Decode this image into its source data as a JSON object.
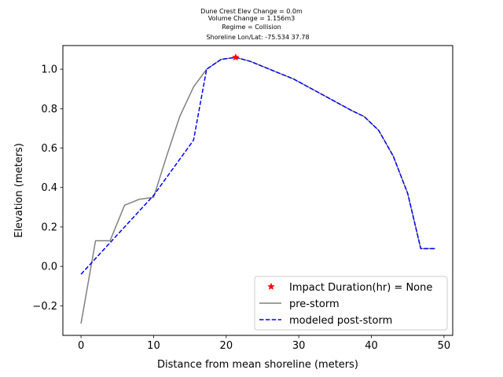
{
  "chart_data": {
    "type": "line",
    "title_lines": [
      "Dune Crest Elev Change = 0.0m",
      "Volume Change = 1.156m3",
      "Regime = Collision",
      "Shoreline Lon/Lat: -75.534 37.78"
    ],
    "xlabel": "Distance from mean shoreline (meters)",
    "ylabel": "Elevation (meters)",
    "xlim": [
      -2.5,
      51.2
    ],
    "ylim": [
      -0.35,
      1.12
    ],
    "xticks": [
      0,
      10,
      20,
      30,
      40,
      50
    ],
    "yticks": [
      -0.2,
      0.0,
      0.2,
      0.4,
      0.6,
      0.8,
      1.0
    ],
    "ytick_labels": [
      "−0.2",
      "0.0",
      "0.2",
      "0.4",
      "0.6",
      "0.8",
      "1.0"
    ],
    "legend_position": "lower-right",
    "series": [
      {
        "name": "pre-storm",
        "color": "#808080",
        "style": "solid",
        "x": [
          0,
          2,
          4,
          6,
          8,
          10,
          11.8,
          13.6,
          15.5,
          17.3,
          19.3,
          21.3,
          23.3,
          25.3,
          27.3,
          29.3,
          31.3,
          33.3,
          35.3,
          37.3,
          39.0,
          41.0,
          43.0,
          45.0,
          46.8,
          47.8,
          48.8
        ],
        "y": [
          -0.29,
          0.13,
          0.13,
          0.31,
          0.34,
          0.35,
          0.56,
          0.76,
          0.91,
          1.0,
          1.05,
          1.06,
          1.04,
          1.01,
          0.98,
          0.95,
          0.91,
          0.87,
          0.83,
          0.79,
          0.76,
          0.69,
          0.56,
          0.37,
          0.09,
          0.09,
          0.09
        ]
      },
      {
        "name": "modeled post-storm",
        "color": "#0000ff",
        "style": "dashed",
        "x": [
          0,
          10,
          15.5,
          17.3,
          19.3,
          21.3,
          23.3,
          25.3,
          27.3,
          29.3,
          31.3,
          33.3,
          35.3,
          37.3,
          39.0,
          41.0,
          43.0,
          45.0,
          46.8,
          47.8,
          48.8
        ],
        "y": [
          -0.04,
          0.36,
          0.64,
          1.0,
          1.05,
          1.06,
          1.04,
          1.01,
          0.98,
          0.95,
          0.91,
          0.87,
          0.83,
          0.79,
          0.76,
          0.69,
          0.56,
          0.37,
          0.09,
          0.09,
          0.09
        ]
      }
    ],
    "marker": {
      "name": "Impact Duration(hr) = None",
      "color": "#ff0000",
      "shape": "star",
      "x": 21.3,
      "y": 1.06
    }
  }
}
